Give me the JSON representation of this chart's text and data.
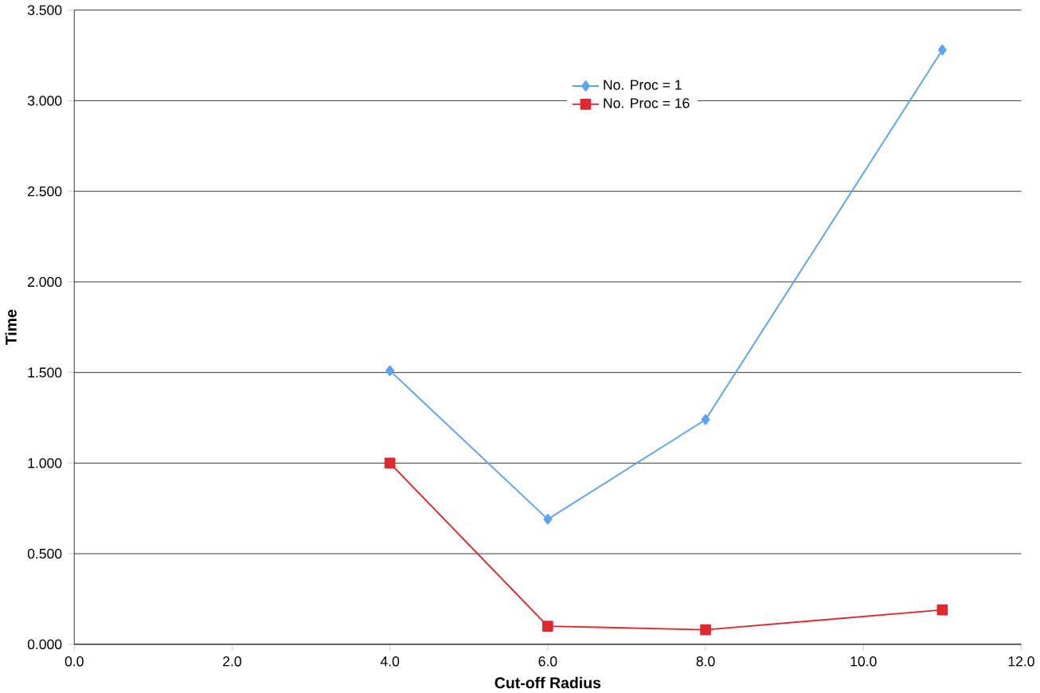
{
  "chart_data": {
    "type": "line",
    "xlabel": "Cut-off Radius",
    "ylabel": "Time",
    "x": [
      4.0,
      6.0,
      8.0,
      11.0
    ],
    "series": [
      {
        "name": "No. Proc = 1",
        "color": "#5ba3f5",
        "marker": "diamond",
        "values": [
          1.51,
          0.69,
          1.24,
          3.28
        ]
      },
      {
        "name": "No. Proc = 16",
        "color": "#e0282e",
        "marker": "square",
        "values": [
          1.0,
          0.1,
          0.08,
          0.19
        ]
      }
    ],
    "xlim": [
      0,
      12
    ],
    "ylim": [
      0,
      3.5
    ],
    "xticks": [
      {
        "value": 0,
        "label": "0.0"
      },
      {
        "value": 2,
        "label": "2.0"
      },
      {
        "value": 4,
        "label": "4.0"
      },
      {
        "value": 6,
        "label": "6.0"
      },
      {
        "value": 8,
        "label": "8.0"
      },
      {
        "value": 10,
        "label": "10.0"
      },
      {
        "value": 12,
        "label": "12.0"
      }
    ],
    "yticks": [
      {
        "value": 0,
        "label": "0.000"
      },
      {
        "value": 0.5,
        "label": "0.500"
      },
      {
        "value": 1,
        "label": "1.000"
      },
      {
        "value": 1.5,
        "label": "1.500"
      },
      {
        "value": 2,
        "label": "2.000"
      },
      {
        "value": 2.5,
        "label": "2.500"
      },
      {
        "value": 3,
        "label": "3.000"
      },
      {
        "value": 3.5,
        "label": "3.500"
      }
    ],
    "grid": "y",
    "legend": "top",
    "line_style": "solid"
  }
}
